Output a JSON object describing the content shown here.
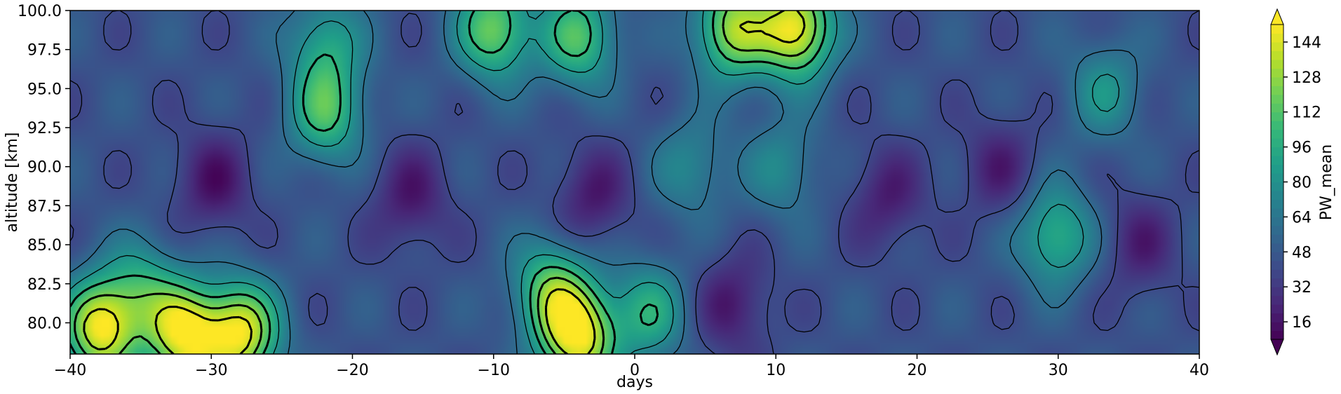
{
  "chart_data": {
    "type": "heatmap",
    "title": "",
    "xlabel": "days",
    "ylabel": "altitude [km]",
    "xlim": [
      -40,
      40
    ],
    "ylim": [
      78,
      100
    ],
    "x_ticks": [
      "−40",
      "−30",
      "−20",
      "−10",
      "0",
      "10",
      "20",
      "30",
      "40"
    ],
    "x_tick_values": [
      -40,
      -30,
      -20,
      -10,
      0,
      10,
      20,
      30,
      40
    ],
    "y_ticks": [
      "80.0",
      "82.5",
      "85.0",
      "87.5",
      "90.0",
      "92.5",
      "95.0",
      "97.5",
      "100.0"
    ],
    "y_tick_values": [
      80,
      82.5,
      85,
      87.5,
      90,
      92.5,
      95,
      97.5,
      100
    ],
    "colorbar": {
      "label": "PW_mean",
      "ticks": [
        "16",
        "32",
        "48",
        "64",
        "80",
        "96",
        "112",
        "128",
        "144"
      ],
      "tick_values": [
        16,
        32,
        48,
        64,
        80,
        96,
        112,
        128,
        144
      ],
      "range": [
        8,
        152
      ],
      "extend": "both",
      "colormap": "viridis",
      "colors": [
        "#440154",
        "#482878",
        "#3e4989",
        "#31688e",
        "#26828e",
        "#1f9e89",
        "#35b779",
        "#6ece58",
        "#b5de2b",
        "#fde725"
      ]
    },
    "features": [
      {
        "x": -38,
        "y": 79.5,
        "value": 150
      },
      {
        "x": -32,
        "y": 79.0,
        "value": 150
      },
      {
        "x": -28,
        "y": 79.2,
        "value": 145
      },
      {
        "x": -35,
        "y": 82.0,
        "value": 90
      },
      {
        "x": -22,
        "y": 93.5,
        "value": 105
      },
      {
        "x": -22,
        "y": 98.0,
        "value": 90
      },
      {
        "x": -10,
        "y": 99.0,
        "value": 120
      },
      {
        "x": -4,
        "y": 98.5,
        "value": 110
      },
      {
        "x": -4,
        "y": 79.0,
        "value": 150
      },
      {
        "x": -6,
        "y": 82.0,
        "value": 110
      },
      {
        "x": 1,
        "y": 80.5,
        "value": 95
      },
      {
        "x": 7,
        "y": 99.0,
        "value": 130
      },
      {
        "x": 11.5,
        "y": 99.0,
        "value": 150
      },
      {
        "x": 10.5,
        "y": 90.0,
        "value": 75
      },
      {
        "x": 4,
        "y": 90.0,
        "value": 75
      },
      {
        "x": 30,
        "y": 85.5,
        "value": 100
      },
      {
        "x": 33.5,
        "y": 95.0,
        "value": 80
      },
      {
        "x": -30,
        "y": 89.0,
        "value": 16
      },
      {
        "x": -16,
        "y": 88.0,
        "value": 18
      },
      {
        "x": -3,
        "y": 88.0,
        "value": 18
      },
      {
        "x": 18,
        "y": 88.0,
        "value": 20
      },
      {
        "x": 26,
        "y": 90.0,
        "value": 22
      },
      {
        "x": 36,
        "y": 85.0,
        "value": 22
      },
      {
        "x": 7,
        "y": 81.0,
        "value": 18
      }
    ]
  }
}
